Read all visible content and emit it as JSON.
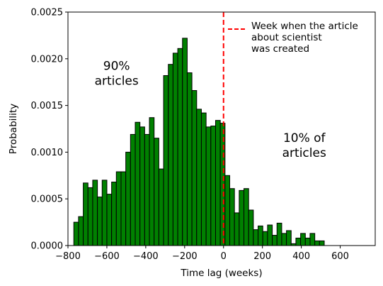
{
  "chart_data": {
    "type": "bar",
    "subtype": "histogram",
    "xlabel": "Time lag (weeks)",
    "ylabel": "Probability",
    "xlim": [
      -800,
      780
    ],
    "ylim": [
      0,
      0.0025
    ],
    "xticks": [
      -800,
      -600,
      -400,
      -200,
      0,
      200,
      400,
      600
    ],
    "xtick_labels": [
      "−800",
      "−600",
      "−400",
      "−200",
      "0",
      "200",
      "400",
      "600"
    ],
    "yticks": [
      0.0,
      0.0005,
      0.001,
      0.0015,
      0.002,
      0.0025
    ],
    "ytick_labels": [
      "0.0000",
      "0.0005",
      "0.0010",
      "0.0015",
      "0.0020",
      "0.0025"
    ],
    "bin_start": -770,
    "bin_width": 24.3,
    "values": [
      0.00025,
      0.00031,
      0.00067,
      0.00062,
      0.0007,
      0.00052,
      0.0007,
      0.00055,
      0.00068,
      0.00079,
      0.00079,
      0.001,
      0.00119,
      0.00132,
      0.00127,
      0.00119,
      0.00137,
      0.00115,
      0.00082,
      0.00182,
      0.00194,
      0.00206,
      0.00211,
      0.00222,
      0.00185,
      0.00166,
      0.00146,
      0.00142,
      0.00127,
      0.00128,
      0.00134,
      0.00131,
      0.00075,
      0.00061,
      0.00035,
      0.00059,
      0.00061,
      0.00038,
      0.00017,
      0.00021,
      0.00015,
      0.00022,
      0.00011,
      0.00024,
      0.00013,
      0.00016,
      2e-05,
      8e-05,
      0.00013,
      8e-05,
      0.00013,
      5e-05,
      5e-05
    ],
    "bar_color": "#008000",
    "bar_edge_color": "#000000",
    "reference_line": {
      "x": 0,
      "color": "#ff0000",
      "style": "dashed"
    },
    "legend": {
      "placement": "top-right",
      "entries": [
        {
          "lines": [
            "Week when the article",
            "about scientist",
            "was created"
          ],
          "color": "#ff0000",
          "style": "dashed"
        }
      ]
    },
    "annotations": [
      {
        "lines": [
          "90%",
          "articles"
        ],
        "x": -550,
        "y": 0.00188
      },
      {
        "lines": [
          "10% of",
          "articles"
        ],
        "x": 415,
        "y": 0.00111
      }
    ],
    "grid": false
  }
}
